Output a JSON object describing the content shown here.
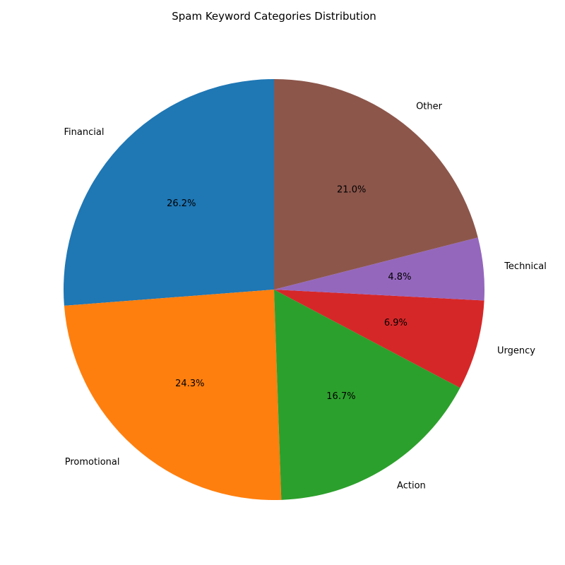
{
  "chart_data": {
    "type": "pie",
    "title": "Spam Keyword Categories Distribution",
    "start_angle_deg": 90,
    "direction": "counterclockwise",
    "slices": [
      {
        "label": "Financial",
        "value": 26.2,
        "pct_label": "26.2%",
        "color": "#1f77b4"
      },
      {
        "label": "Promotional",
        "value": 24.3,
        "pct_label": "24.3%",
        "color": "#ff7f0e"
      },
      {
        "label": "Action",
        "value": 16.7,
        "pct_label": "16.7%",
        "color": "#2ca02c"
      },
      {
        "label": "Urgency",
        "value": 6.9,
        "pct_label": "6.9%",
        "color": "#d62728"
      },
      {
        "label": "Technical",
        "value": 4.8,
        "pct_label": "4.8%",
        "color": "#9467bd"
      },
      {
        "label": "Other",
        "value": 21.0,
        "pct_label": "21.0%",
        "color": "#8c564b"
      }
    ]
  }
}
